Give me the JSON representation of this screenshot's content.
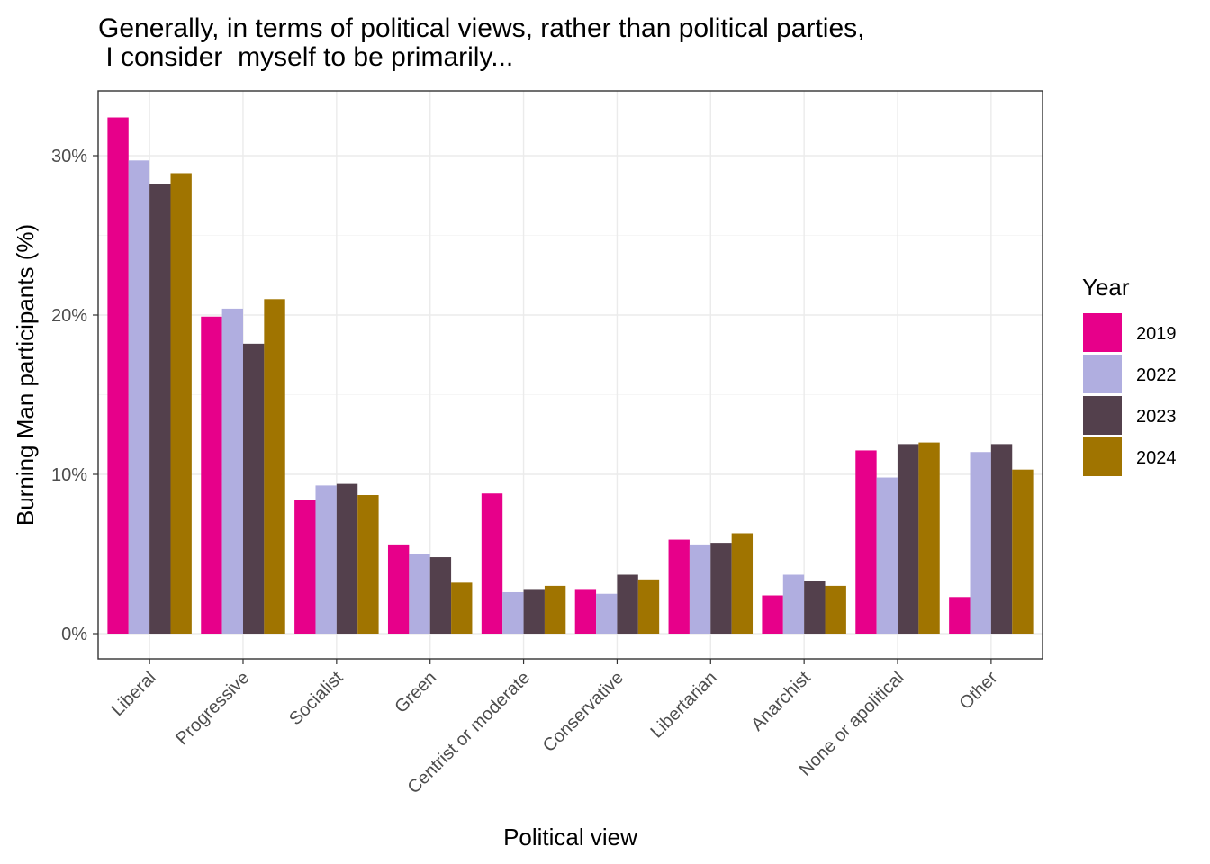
{
  "chart_data": {
    "type": "bar",
    "title": [
      "Generally, in terms of political views, rather than political parties,",
      " I consider  myself to be primarily..."
    ],
    "xlabel": "Political view",
    "ylabel": "Burning Man participants (%)",
    "categories": [
      "Liberal",
      "Progressive",
      "Socialist",
      "Green",
      "Centrist or moderate",
      "Conservative",
      "Libertarian",
      "Anarchist",
      "None or apolitical",
      "Other"
    ],
    "series": [
      {
        "name": "2019",
        "color": "#e7008a",
        "values": [
          32.4,
          19.9,
          8.4,
          5.6,
          8.8,
          2.8,
          5.9,
          2.4,
          11.5,
          2.3
        ]
      },
      {
        "name": "2022",
        "color": "#b0aee0",
        "values": [
          29.7,
          20.4,
          9.3,
          5.0,
          2.6,
          2.5,
          5.6,
          3.7,
          9.8,
          11.4
        ]
      },
      {
        "name": "2023",
        "color": "#53404c",
        "values": [
          28.2,
          18.2,
          9.4,
          4.8,
          2.8,
          3.7,
          5.7,
          3.3,
          11.9,
          11.9
        ]
      },
      {
        "name": "2024",
        "color": "#a07400",
        "values": [
          28.9,
          21.0,
          8.7,
          3.2,
          3.0,
          3.4,
          6.3,
          3.0,
          12.0,
          10.3
        ]
      }
    ],
    "yticks": [
      0,
      10,
      20,
      30
    ],
    "ytick_labels": [
      "0%",
      "10%",
      "20%",
      "30%"
    ],
    "ylim": [
      -1.65,
      33.9
    ],
    "legend": {
      "title": "Year",
      "position": "right"
    },
    "grid": true
  }
}
